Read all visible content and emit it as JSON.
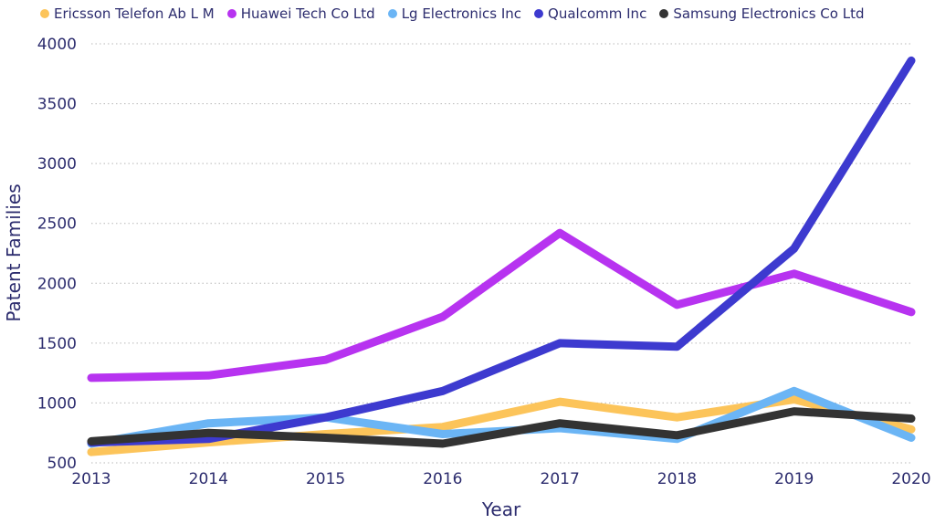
{
  "chart_data": {
    "type": "line",
    "xlabel": "Year",
    "ylabel": "Patent Families",
    "x": [
      "2013",
      "2014",
      "2015",
      "2016",
      "2017",
      "2018",
      "2019",
      "2020"
    ],
    "ylim": [
      500,
      4000
    ],
    "yticks": [
      "500",
      "1000",
      "1500",
      "2000",
      "2500",
      "3000",
      "3500",
      "4000"
    ],
    "grid": true,
    "legend_position": "top-left",
    "series": [
      {
        "name": "Ericsson Telefon Ab L M",
        "color": "#FCC45A",
        "values": [
          590,
          670,
          740,
          800,
          1010,
          880,
          1030,
          780
        ]
      },
      {
        "name": "Huawei Tech Co Ltd",
        "color": "#B733F0",
        "values": [
          1210,
          1230,
          1360,
          1720,
          2420,
          1820,
          2080,
          1760
        ]
      },
      {
        "name": "Lg Electronics Inc",
        "color": "#6BB5F5",
        "values": [
          660,
          830,
          880,
          740,
          790,
          700,
          1100,
          710
        ]
      },
      {
        "name": "Qualcomm Inc",
        "color": "#3D3ACF",
        "values": [
          670,
          700,
          880,
          1100,
          1500,
          1470,
          2290,
          3860
        ]
      },
      {
        "name": "Samsung Electronics Co Ltd",
        "color": "#333333",
        "values": [
          680,
          750,
          710,
          660,
          830,
          730,
          930,
          870
        ]
      }
    ]
  }
}
